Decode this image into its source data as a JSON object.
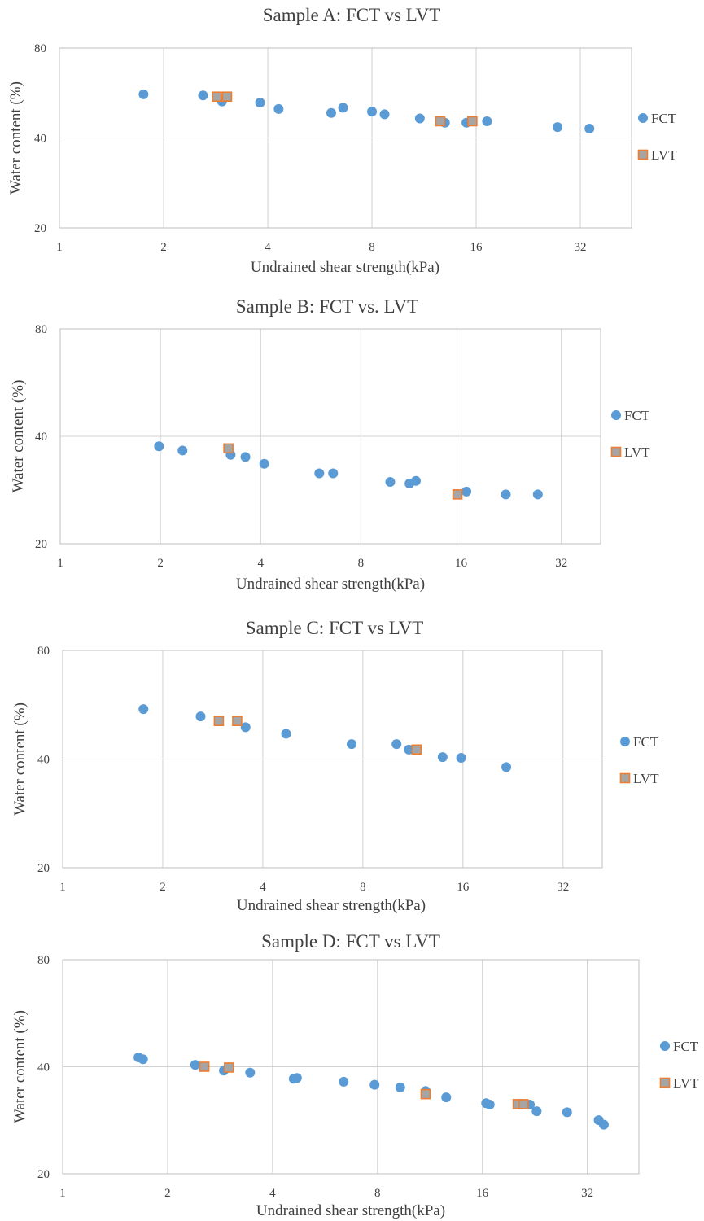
{
  "chart_data": [
    {
      "type": "scatter",
      "title": "Sample A: FCT vs LVT",
      "xlabel": "Undrained shear strength(kPa)",
      "ylabel": "Water content (%)",
      "x_scale": "log2",
      "xlim": [
        1,
        45
      ],
      "ylim": [
        20,
        80
      ],
      "x_ticks": [
        "1",
        "2",
        "4",
        "8",
        "16",
        "32"
      ],
      "y_ticks": [
        "20",
        "40",
        "80"
      ],
      "grid": true,
      "legend": "right",
      "series": [
        {
          "name": "FCT",
          "marker": "circle",
          "color": "#5b9bd5",
          "points": [
            [
              1.75,
              56
            ],
            [
              2.6,
              55.5
            ],
            [
              2.95,
              53
            ],
            [
              3.8,
              52.5
            ],
            [
              4.3,
              50
            ],
            [
              6.1,
              48.5
            ],
            [
              6.6,
              50.5
            ],
            [
              8.0,
              49
            ],
            [
              8.7,
              48
            ],
            [
              11,
              46.5
            ],
            [
              13,
              45
            ],
            [
              15,
              45
            ],
            [
              17.2,
              45.5
            ],
            [
              27.5,
              43.5
            ],
            [
              34,
              43
            ]
          ]
        },
        {
          "name": "LVT",
          "marker": "square",
          "color": "#a5a5a5",
          "edge": "#ed7d31",
          "points": [
            [
              2.85,
              55
            ],
            [
              3.05,
              55
            ],
            [
              12.6,
              45.5
            ],
            [
              15.6,
              45.5
            ]
          ]
        }
      ]
    },
    {
      "type": "scatter",
      "title": "Sample B: FCT vs. LVT",
      "xlabel": "Undrained shear strength(kPa)",
      "ylabel": "Water content (%)",
      "x_scale": "log2",
      "xlim": [
        1,
        42
      ],
      "ylim": [
        20,
        80
      ],
      "x_ticks": [
        "1",
        "2",
        "4",
        "8",
        "16",
        "32"
      ],
      "y_ticks": [
        "20",
        "40",
        "80"
      ],
      "grid": true,
      "legend": "right",
      "series": [
        {
          "name": "FCT",
          "marker": "circle",
          "color": "#5b9bd5",
          "points": [
            [
              1.98,
              37.5
            ],
            [
              2.33,
              36.5
            ],
            [
              3.25,
              35.5
            ],
            [
              3.6,
              35
            ],
            [
              4.1,
              33.5
            ],
            [
              6.0,
              31.5
            ],
            [
              6.6,
              31.5
            ],
            [
              9.8,
              29.8
            ],
            [
              11.2,
              29.5
            ],
            [
              11.7,
              30
            ],
            [
              16.6,
              28
            ],
            [
              21.8,
              27.5
            ],
            [
              27.2,
              27.5
            ]
          ]
        },
        {
          "name": "LVT",
          "marker": "square",
          "color": "#a5a5a5",
          "edge": "#ed7d31",
          "points": [
            [
              3.2,
              37
            ],
            [
              15.6,
              27.5
            ]
          ]
        }
      ]
    },
    {
      "type": "scatter",
      "title": "Sample C: FCT vs LVT",
      "xlabel": "Undrained shear strength(kPa)",
      "ylabel": "Water content (%)",
      "x_scale": "log2",
      "xlim": [
        1,
        42
      ],
      "ylim": [
        20,
        80
      ],
      "x_ticks": [
        "1",
        "2",
        "4",
        "8",
        "16",
        "32"
      ],
      "y_ticks": [
        "20",
        "40",
        "80"
      ],
      "grid": true,
      "legend": "right",
      "series": [
        {
          "name": "FCT",
          "marker": "circle",
          "color": "#5b9bd5",
          "points": [
            [
              1.75,
              55
            ],
            [
              2.6,
              52.5
            ],
            [
              3.55,
              49
            ],
            [
              4.7,
              47
            ],
            [
              7.4,
              44
            ],
            [
              10.1,
              44
            ],
            [
              11.0,
              42.5
            ],
            [
              13.9,
              40.5
            ],
            [
              15.8,
              40.3
            ],
            [
              21.6,
              38
            ]
          ]
        },
        {
          "name": "LVT",
          "marker": "square",
          "color": "#a5a5a5",
          "edge": "#ed7d31",
          "points": [
            [
              2.95,
              51
            ],
            [
              3.35,
              51
            ],
            [
              11.6,
              42.5
            ]
          ]
        }
      ]
    },
    {
      "type": "scatter",
      "title": "Sample D: FCT vs LVT",
      "xlabel": "Undrained shear strength(kPa)",
      "ylabel": "Water content (%)",
      "x_scale": "log2",
      "xlim": [
        1,
        45
      ],
      "ylim": [
        20,
        80
      ],
      "x_ticks": [
        "1",
        "2",
        "4",
        "8",
        "16",
        "32"
      ],
      "y_ticks": [
        "20",
        "40",
        "80"
      ],
      "grid": true,
      "legend": "right",
      "series": [
        {
          "name": "FCT",
          "marker": "circle",
          "color": "#5b9bd5",
          "points": [
            [
              1.65,
              42.5
            ],
            [
              1.7,
              42
            ],
            [
              2.4,
              40.5
            ],
            [
              2.9,
              39
            ],
            [
              3.45,
              38.5
            ],
            [
              4.6,
              37
            ],
            [
              4.7,
              37.2
            ],
            [
              6.4,
              36.3
            ],
            [
              7.85,
              35.6
            ],
            [
              9.3,
              35
            ],
            [
              11.0,
              34.2
            ],
            [
              12.6,
              32.8
            ],
            [
              16.4,
              31.6
            ],
            [
              16.8,
              31.3
            ],
            [
              21.9,
              31.3
            ],
            [
              22.9,
              30
            ],
            [
              28.0,
              29.8
            ],
            [
              34.5,
              28.3
            ],
            [
              35.7,
              27.5
            ]
          ]
        },
        {
          "name": "LVT",
          "marker": "square",
          "color": "#a5a5a5",
          "edge": "#ed7d31",
          "points": [
            [
              2.55,
              40
            ],
            [
              3.0,
              39.8
            ],
            [
              11.0,
              33.5
            ],
            [
              20.2,
              31.4
            ],
            [
              21.0,
              31.4
            ]
          ]
        }
      ]
    }
  ]
}
